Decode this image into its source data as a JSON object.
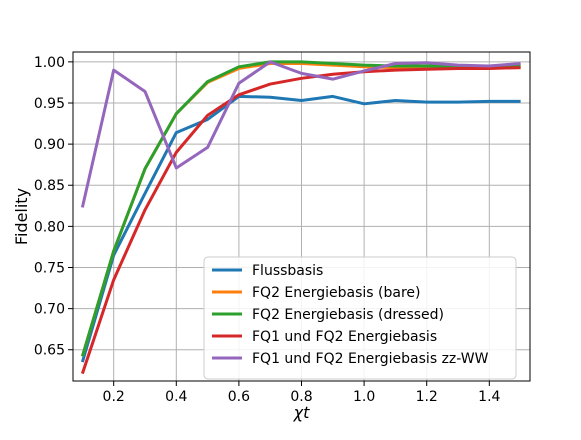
{
  "chart_data": {
    "type": "line",
    "xlabel": "χt",
    "ylabel": "Fidelity",
    "xlim": [
      0.07,
      1.53
    ],
    "ylim": [
      0.612,
      1.012
    ],
    "grid": true,
    "legend_position": "bottom-right",
    "x_ticks": [
      0.2,
      0.4,
      0.6,
      0.8,
      1.0,
      1.2,
      1.4
    ],
    "x_tick_labels": [
      "0.2",
      "0.4",
      "0.6",
      "0.8",
      "1.0",
      "1.2",
      "1.4"
    ],
    "y_ticks": [
      0.65,
      0.7,
      0.75,
      0.8,
      0.85,
      0.9,
      0.95,
      1.0
    ],
    "y_tick_labels": [
      "0.65",
      "0.70",
      "0.75",
      "0.80",
      "0.85",
      "0.90",
      "0.95",
      "1.00"
    ],
    "x": [
      0.1,
      0.2,
      0.3,
      0.4,
      0.5,
      0.6,
      0.7,
      0.8,
      0.9,
      1.0,
      1.1,
      1.2,
      1.3,
      1.4,
      1.5
    ],
    "series": [
      {
        "name": "Flussbasis",
        "color": "#1f77b4",
        "values": [
          0.635,
          0.765,
          0.84,
          0.914,
          0.93,
          0.958,
          0.957,
          0.953,
          0.958,
          0.949,
          0.953,
          0.951,
          0.951,
          0.952,
          0.952
        ]
      },
      {
        "name": "FQ2 Energiebasis (bare)",
        "color": "#ff7f0e",
        "values": [
          0.642,
          0.77,
          0.87,
          0.937,
          0.975,
          0.992,
          0.998,
          0.998,
          0.996,
          0.994,
          0.993,
          0.993,
          0.993,
          0.993,
          0.993
        ]
      },
      {
        "name": "FQ2 Energiebasis (dressed)",
        "color": "#2ca02c",
        "values": [
          0.642,
          0.77,
          0.87,
          0.937,
          0.976,
          0.994,
          1.0,
          1.0,
          0.998,
          0.996,
          0.995,
          0.995,
          0.995,
          0.995,
          0.996
        ]
      },
      {
        "name": "FQ1 und FQ2 Energiebasis",
        "color": "#d62728",
        "values": [
          0.621,
          0.735,
          0.82,
          0.89,
          0.935,
          0.96,
          0.973,
          0.98,
          0.985,
          0.988,
          0.99,
          0.991,
          0.992,
          0.992,
          0.993
        ]
      },
      {
        "name": "FQ1 und FQ2 Energiebasis zz-WW",
        "color": "#9467bd",
        "values": [
          0.823,
          0.99,
          0.964,
          0.871,
          0.896,
          0.974,
          1.0,
          0.986,
          0.979,
          0.989,
          0.998,
          0.999,
          0.996,
          0.995,
          0.998
        ]
      }
    ]
  }
}
